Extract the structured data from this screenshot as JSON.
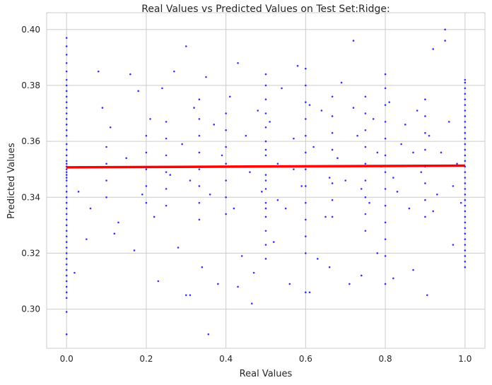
{
  "chart_data": {
    "type": "scatter",
    "title": "Real Values vs Predicted Values on Test Set:Ridge:",
    "xlabel": "Real Values",
    "ylabel": "Predicted Values",
    "xlim": [
      -0.05,
      1.05
    ],
    "ylim": [
      0.286,
      0.406
    ],
    "xticks": [
      0.0,
      0.2,
      0.4,
      0.6,
      0.8,
      1.0
    ],
    "xtick_labels": [
      "0.0",
      "0.2",
      "0.4",
      "0.6",
      "0.8",
      "1.0"
    ],
    "yticks": [
      0.3,
      0.32,
      0.34,
      0.36,
      0.38,
      0.4
    ],
    "ytick_labels": [
      "0.30",
      "0.32",
      "0.34",
      "0.36",
      "0.38",
      "0.40"
    ],
    "grid": true,
    "colors": {
      "points": "#0000ff",
      "regression_line": "#ff0000",
      "grid": "#cccccc",
      "axes_edge": "#cccccc",
      "text": "#262626"
    },
    "scatter_points": [
      [
        0.0,
        0.351
      ],
      [
        0.0,
        0.352
      ],
      [
        0.0,
        0.349
      ],
      [
        0.0,
        0.353
      ],
      [
        0.0,
        0.348
      ],
      [
        0.0,
        0.355
      ],
      [
        0.0,
        0.346
      ],
      [
        0.0,
        0.357
      ],
      [
        0.0,
        0.344
      ],
      [
        0.0,
        0.359
      ],
      [
        0.0,
        0.342
      ],
      [
        0.0,
        0.362
      ],
      [
        0.0,
        0.34
      ],
      [
        0.0,
        0.364
      ],
      [
        0.0,
        0.338
      ],
      [
        0.0,
        0.366
      ],
      [
        0.0,
        0.336
      ],
      [
        0.0,
        0.368
      ],
      [
        0.0,
        0.334
      ],
      [
        0.0,
        0.37
      ],
      [
        0.0,
        0.332
      ],
      [
        0.0,
        0.372
      ],
      [
        0.0,
        0.33
      ],
      [
        0.0,
        0.374
      ],
      [
        0.0,
        0.328
      ],
      [
        0.0,
        0.376
      ],
      [
        0.0,
        0.326
      ],
      [
        0.0,
        0.378
      ],
      [
        0.0,
        0.324
      ],
      [
        0.0,
        0.38
      ],
      [
        0.0,
        0.322
      ],
      [
        0.0,
        0.382
      ],
      [
        0.0,
        0.32
      ],
      [
        0.0,
        0.385
      ],
      [
        0.0,
        0.318
      ],
      [
        0.0,
        0.388
      ],
      [
        0.0,
        0.316
      ],
      [
        0.0,
        0.391
      ],
      [
        0.0,
        0.314
      ],
      [
        0.0,
        0.394
      ],
      [
        0.0,
        0.312
      ],
      [
        0.0,
        0.397
      ],
      [
        0.0,
        0.31
      ],
      [
        0.0,
        0.308
      ],
      [
        0.0,
        0.306
      ],
      [
        0.0,
        0.304
      ],
      [
        0.0,
        0.299
      ],
      [
        0.0,
        0.291
      ],
      [
        0.0,
        0.35
      ],
      [
        0.0,
        0.347
      ],
      [
        1.0,
        0.351
      ],
      [
        1.0,
        0.353
      ],
      [
        1.0,
        0.349
      ],
      [
        1.0,
        0.355
      ],
      [
        1.0,
        0.347
      ],
      [
        1.0,
        0.357
      ],
      [
        1.0,
        0.345
      ],
      [
        1.0,
        0.359
      ],
      [
        1.0,
        0.343
      ],
      [
        1.0,
        0.361
      ],
      [
        1.0,
        0.341
      ],
      [
        1.0,
        0.363
      ],
      [
        1.0,
        0.339
      ],
      [
        1.0,
        0.365
      ],
      [
        1.0,
        0.337
      ],
      [
        1.0,
        0.367
      ],
      [
        1.0,
        0.335
      ],
      [
        1.0,
        0.369
      ],
      [
        1.0,
        0.333
      ],
      [
        1.0,
        0.371
      ],
      [
        1.0,
        0.331
      ],
      [
        1.0,
        0.373
      ],
      [
        1.0,
        0.329
      ],
      [
        1.0,
        0.375
      ],
      [
        1.0,
        0.327
      ],
      [
        1.0,
        0.377
      ],
      [
        1.0,
        0.325
      ],
      [
        1.0,
        0.379
      ],
      [
        1.0,
        0.323
      ],
      [
        1.0,
        0.381
      ],
      [
        1.0,
        0.321
      ],
      [
        1.0,
        0.382
      ],
      [
        1.0,
        0.319
      ],
      [
        1.0,
        0.317
      ],
      [
        1.0,
        0.315
      ],
      [
        0.5,
        0.351
      ],
      [
        0.5,
        0.348
      ],
      [
        0.5,
        0.355
      ],
      [
        0.5,
        0.343
      ],
      [
        0.5,
        0.36
      ],
      [
        0.5,
        0.338
      ],
      [
        0.5,
        0.365
      ],
      [
        0.5,
        0.333
      ],
      [
        0.5,
        0.37
      ],
      [
        0.5,
        0.328
      ],
      [
        0.5,
        0.375
      ],
      [
        0.5,
        0.323
      ],
      [
        0.5,
        0.38
      ],
      [
        0.5,
        0.318
      ],
      [
        0.5,
        0.384
      ],
      [
        0.5,
        0.346
      ],
      [
        0.5,
        0.357
      ],
      [
        0.5,
        0.336
      ],
      [
        0.6,
        0.35
      ],
      [
        0.6,
        0.356
      ],
      [
        0.6,
        0.344
      ],
      [
        0.6,
        0.362
      ],
      [
        0.6,
        0.338
      ],
      [
        0.6,
        0.368
      ],
      [
        0.6,
        0.332
      ],
      [
        0.6,
        0.374
      ],
      [
        0.6,
        0.326
      ],
      [
        0.6,
        0.38
      ],
      [
        0.6,
        0.32
      ],
      [
        0.6,
        0.386
      ],
      [
        0.6,
        0.306
      ],
      [
        0.8,
        0.349
      ],
      [
        0.8,
        0.355
      ],
      [
        0.8,
        0.343
      ],
      [
        0.8,
        0.361
      ],
      [
        0.8,
        0.337
      ],
      [
        0.8,
        0.367
      ],
      [
        0.8,
        0.331
      ],
      [
        0.8,
        0.373
      ],
      [
        0.8,
        0.325
      ],
      [
        0.8,
        0.379
      ],
      [
        0.8,
        0.319
      ],
      [
        0.8,
        0.384
      ],
      [
        0.8,
        0.309
      ],
      [
        0.75,
        0.352
      ],
      [
        0.75,
        0.346
      ],
      [
        0.75,
        0.358
      ],
      [
        0.75,
        0.34
      ],
      [
        0.75,
        0.364
      ],
      [
        0.75,
        0.334
      ],
      [
        0.75,
        0.37
      ],
      [
        0.75,
        0.328
      ],
      [
        0.75,
        0.376
      ],
      [
        0.4,
        0.352
      ],
      [
        0.4,
        0.346
      ],
      [
        0.4,
        0.358
      ],
      [
        0.4,
        0.34
      ],
      [
        0.4,
        0.364
      ],
      [
        0.4,
        0.334
      ],
      [
        0.4,
        0.37
      ],
      [
        0.333,
        0.35
      ],
      [
        0.333,
        0.356
      ],
      [
        0.333,
        0.344
      ],
      [
        0.333,
        0.362
      ],
      [
        0.333,
        0.338
      ],
      [
        0.333,
        0.368
      ],
      [
        0.333,
        0.332
      ],
      [
        0.333,
        0.375
      ],
      [
        0.667,
        0.351
      ],
      [
        0.667,
        0.357
      ],
      [
        0.667,
        0.345
      ],
      [
        0.667,
        0.363
      ],
      [
        0.667,
        0.339
      ],
      [
        0.667,
        0.369
      ],
      [
        0.667,
        0.333
      ],
      [
        0.667,
        0.376
      ],
      [
        0.25,
        0.349
      ],
      [
        0.25,
        0.355
      ],
      [
        0.25,
        0.343
      ],
      [
        0.25,
        0.361
      ],
      [
        0.25,
        0.337
      ],
      [
        0.25,
        0.367
      ],
      [
        0.2,
        0.35
      ],
      [
        0.2,
        0.356
      ],
      [
        0.2,
        0.344
      ],
      [
        0.2,
        0.362
      ],
      [
        0.2,
        0.338
      ],
      [
        0.1,
        0.352
      ],
      [
        0.1,
        0.346
      ],
      [
        0.1,
        0.358
      ],
      [
        0.1,
        0.34
      ],
      [
        0.9,
        0.351
      ],
      [
        0.9,
        0.357
      ],
      [
        0.9,
        0.345
      ],
      [
        0.9,
        0.363
      ],
      [
        0.9,
        0.339
      ],
      [
        0.9,
        0.369
      ],
      [
        0.9,
        0.333
      ],
      [
        0.9,
        0.375
      ],
      [
        0.95,
        0.4
      ],
      [
        0.95,
        0.396
      ],
      [
        0.72,
        0.396
      ],
      [
        0.3,
        0.394
      ],
      [
        0.92,
        0.393
      ],
      [
        0.356,
        0.291
      ],
      [
        0.465,
        0.302
      ],
      [
        0.3,
        0.305
      ],
      [
        0.31,
        0.305
      ],
      [
        0.43,
        0.308
      ],
      [
        0.61,
        0.306
      ],
      [
        0.23,
        0.31
      ],
      [
        0.38,
        0.309
      ],
      [
        0.56,
        0.309
      ],
      [
        0.71,
        0.309
      ],
      [
        0.82,
        0.311
      ],
      [
        0.905,
        0.305
      ],
      [
        0.02,
        0.313
      ],
      [
        0.34,
        0.315
      ],
      [
        0.47,
        0.313
      ],
      [
        0.66,
        0.315
      ],
      [
        0.74,
        0.312
      ],
      [
        0.87,
        0.314
      ],
      [
        0.05,
        0.325
      ],
      [
        0.12,
        0.327
      ],
      [
        0.17,
        0.321
      ],
      [
        0.28,
        0.322
      ],
      [
        0.44,
        0.319
      ],
      [
        0.52,
        0.324
      ],
      [
        0.63,
        0.318
      ],
      [
        0.78,
        0.32
      ],
      [
        0.97,
        0.323
      ],
      [
        0.03,
        0.342
      ],
      [
        0.06,
        0.336
      ],
      [
        0.08,
        0.385
      ],
      [
        0.09,
        0.372
      ],
      [
        0.11,
        0.365
      ],
      [
        0.13,
        0.331
      ],
      [
        0.15,
        0.354
      ],
      [
        0.16,
        0.384
      ],
      [
        0.18,
        0.378
      ],
      [
        0.19,
        0.341
      ],
      [
        0.21,
        0.368
      ],
      [
        0.22,
        0.333
      ],
      [
        0.24,
        0.379
      ],
      [
        0.26,
        0.348
      ],
      [
        0.27,
        0.385
      ],
      [
        0.29,
        0.359
      ],
      [
        0.31,
        0.346
      ],
      [
        0.32,
        0.372
      ],
      [
        0.35,
        0.383
      ],
      [
        0.36,
        0.341
      ],
      [
        0.37,
        0.366
      ],
      [
        0.39,
        0.355
      ],
      [
        0.41,
        0.376
      ],
      [
        0.42,
        0.336
      ],
      [
        0.43,
        0.388
      ],
      [
        0.45,
        0.362
      ],
      [
        0.46,
        0.349
      ],
      [
        0.48,
        0.371
      ],
      [
        0.49,
        0.342
      ],
      [
        0.51,
        0.367
      ],
      [
        0.53,
        0.352
      ],
      [
        0.54,
        0.379
      ],
      [
        0.55,
        0.336
      ],
      [
        0.57,
        0.361
      ],
      [
        0.58,
        0.387
      ],
      [
        0.59,
        0.344
      ],
      [
        0.62,
        0.358
      ],
      [
        0.64,
        0.371
      ],
      [
        0.65,
        0.333
      ],
      [
        0.68,
        0.354
      ],
      [
        0.69,
        0.381
      ],
      [
        0.7,
        0.346
      ],
      [
        0.73,
        0.362
      ],
      [
        0.76,
        0.338
      ],
      [
        0.77,
        0.368
      ],
      [
        0.79,
        0.351
      ],
      [
        0.81,
        0.374
      ],
      [
        0.83,
        0.342
      ],
      [
        0.84,
        0.359
      ],
      [
        0.85,
        0.366
      ],
      [
        0.86,
        0.336
      ],
      [
        0.88,
        0.371
      ],
      [
        0.89,
        0.349
      ],
      [
        0.91,
        0.362
      ],
      [
        0.93,
        0.341
      ],
      [
        0.94,
        0.356
      ],
      [
        0.96,
        0.367
      ],
      [
        0.98,
        0.352
      ],
      [
        0.99,
        0.338
      ],
      [
        0.97,
        0.344
      ],
      [
        0.92,
        0.335
      ],
      [
        0.87,
        0.356
      ],
      [
        0.82,
        0.347
      ],
      [
        0.78,
        0.356
      ],
      [
        0.74,
        0.343
      ],
      [
        0.72,
        0.372
      ],
      [
        0.66,
        0.347
      ],
      [
        0.61,
        0.373
      ],
      [
        0.57,
        0.35
      ],
      [
        0.53,
        0.339
      ]
    ],
    "regression_line": {
      "x": [
        0.0,
        1.0
      ],
      "y": [
        0.3507,
        0.3513
      ]
    }
  }
}
